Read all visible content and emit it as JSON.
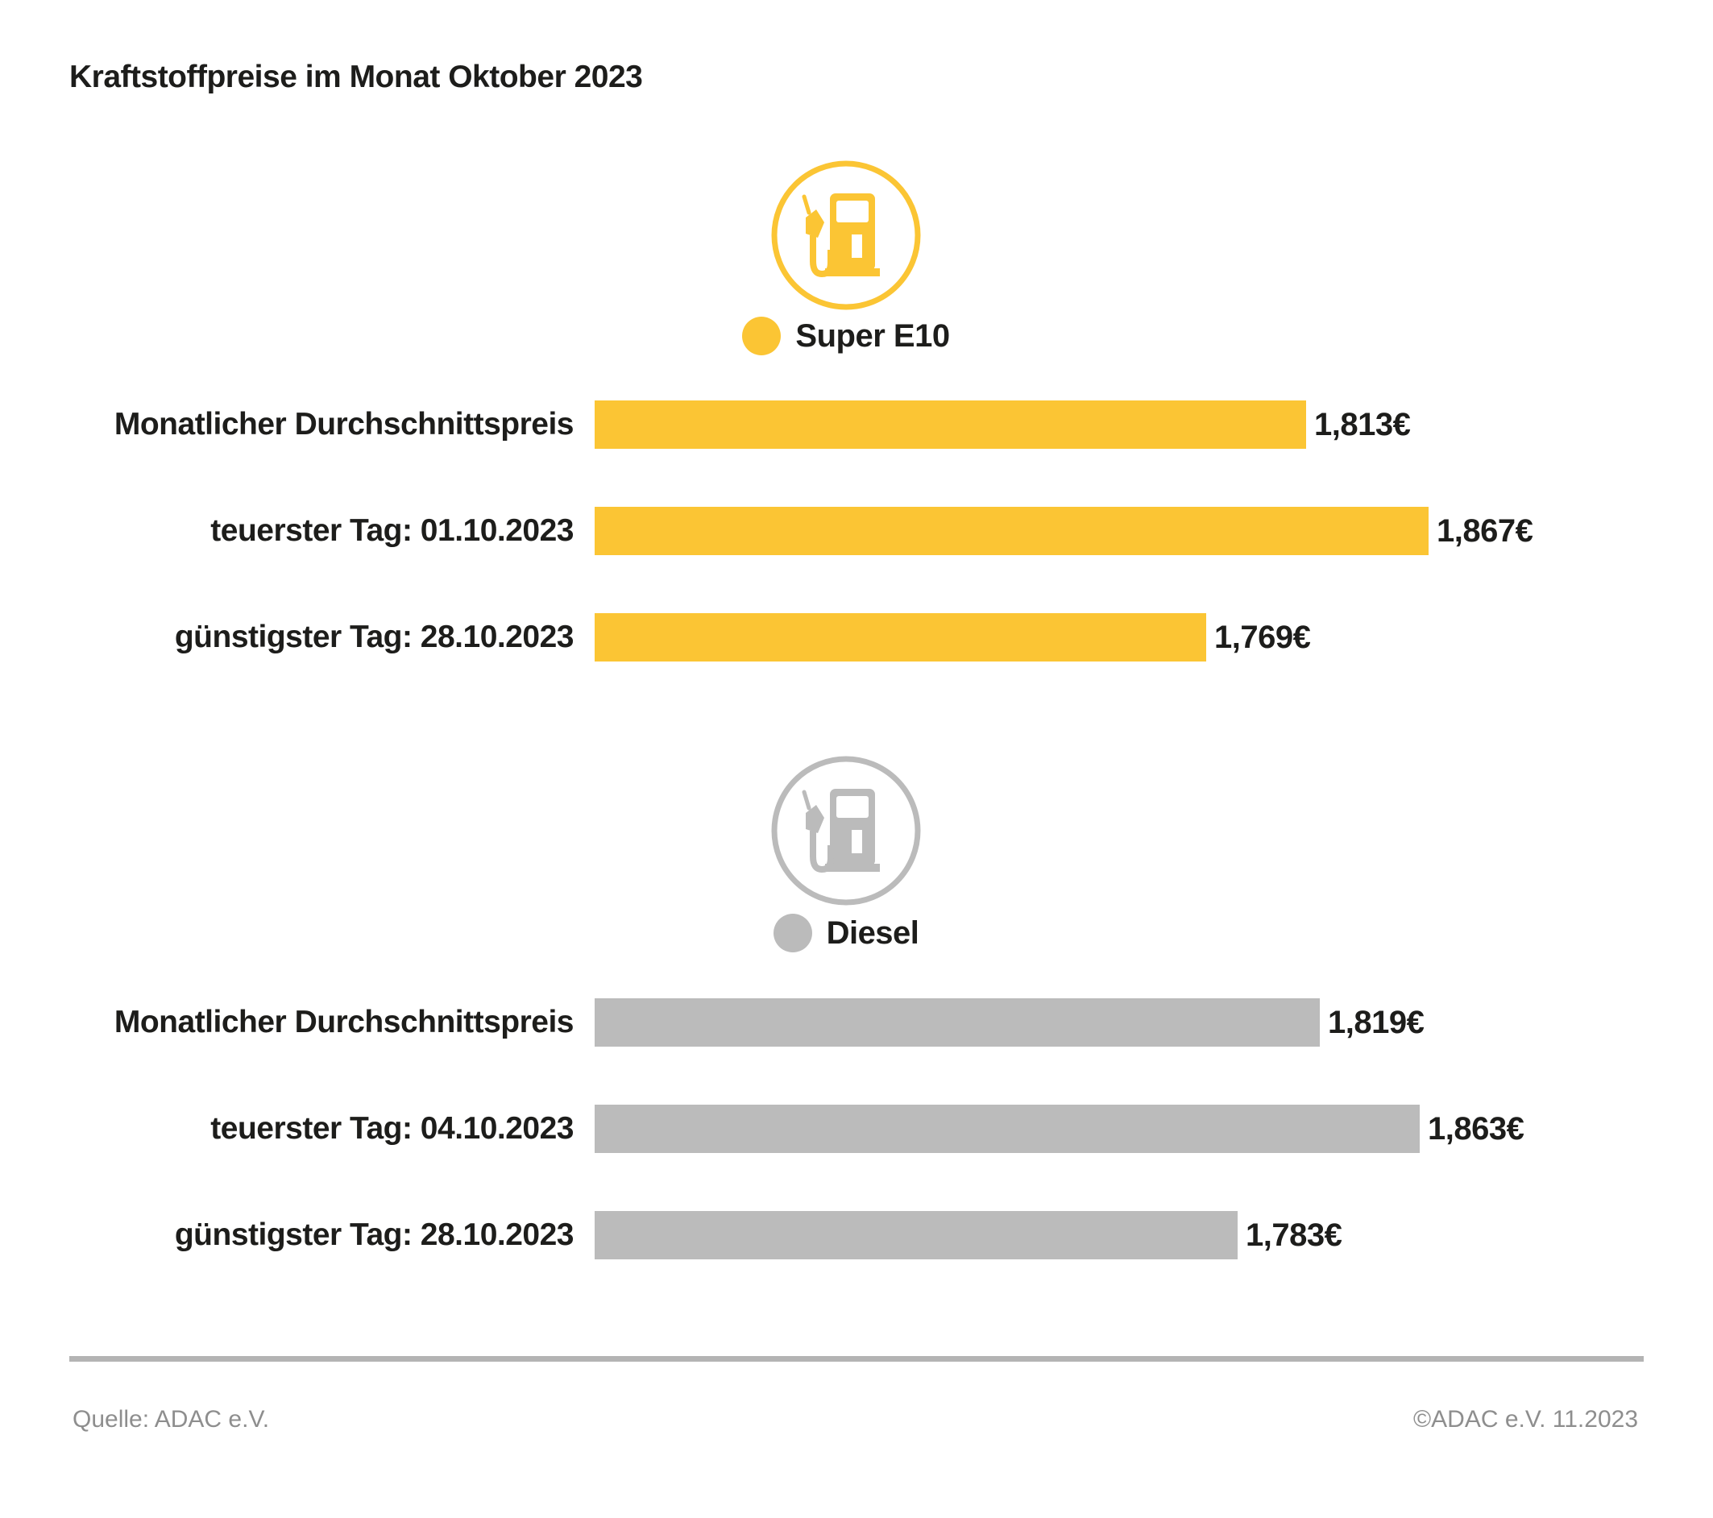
{
  "title": "Kraftstoffpreise im Monat Oktober 2023",
  "colors": {
    "super_yellow": "#FBC534",
    "diesel_gray": "#BBBBBB",
    "text": "#1D1D1B",
    "footer_text": "#8E8E8E",
    "divider": "#B4B4B4",
    "background": "#FFFFFF"
  },
  "chart_data": [
    {
      "type": "bar",
      "orientation": "horizontal",
      "series_name": "Super E10",
      "icon": "fuel-pump-icon",
      "color": "#FBC534",
      "categories": [
        "Monatlicher Durchschnittspreis",
        "teuerster Tag: 01.10.2023",
        "günstigster Tag: 28.10.2023"
      ],
      "values": [
        1.813,
        1.867,
        1.769
      ],
      "value_labels": [
        "1,813€",
        "1,867€",
        "1,769€"
      ],
      "xlim": [
        1.5,
        1.9
      ],
      "grid": false,
      "legend_position": "above-bars-center"
    },
    {
      "type": "bar",
      "orientation": "horizontal",
      "series_name": "Diesel",
      "icon": "fuel-pump-icon",
      "color": "#BBBBBB",
      "categories": [
        "Monatlicher Durchschnittspreis",
        "teuerster Tag: 04.10.2023",
        "günstigster Tag: 28.10.2023"
      ],
      "values": [
        1.819,
        1.863,
        1.783
      ],
      "value_labels": [
        "1,819€",
        "1,863€",
        "1,783€"
      ],
      "xlim": [
        1.5,
        1.9
      ],
      "grid": false,
      "legend_position": "above-bars-center"
    }
  ],
  "footer": {
    "source": "Quelle: ADAC e.V.",
    "copyright": "©ADAC e.V. 11.2023"
  }
}
